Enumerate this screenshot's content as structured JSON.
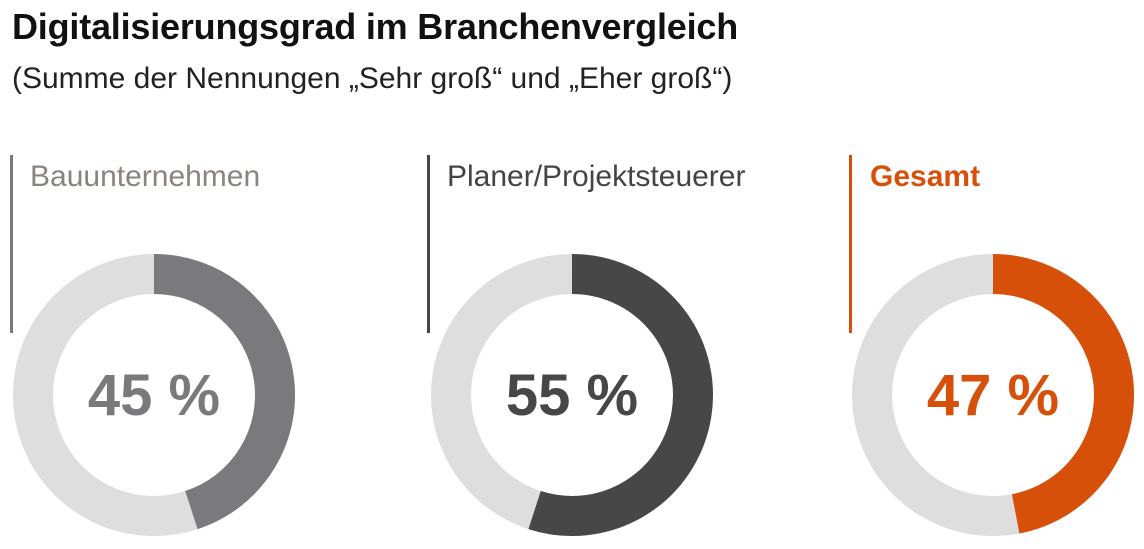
{
  "header": {
    "title": "Digitalisierungsgrad im Branchenvergleich",
    "subtitle": "(Summe der Nennungen „Sehr groß“ und „Eher groß“)"
  },
  "colors": {
    "track": "#dedede"
  },
  "chart_data": {
    "type": "donut",
    "items": [
      {
        "label": "Bauunternehmen",
        "value": 45,
        "display": "45 %",
        "color": "#7a7a7c",
        "label_color": "#8a8480",
        "label_weight": "normal"
      },
      {
        "label": "Planer/Projektsteuerer",
        "value": 55,
        "display": "55 %",
        "color": "#474747",
        "label_color": "#444444",
        "label_weight": "normal"
      },
      {
        "label": "Gesamt",
        "value": 47,
        "display": "47 %",
        "color": "#d6500a",
        "label_color": "#d6500a",
        "label_weight": "bold"
      }
    ]
  }
}
